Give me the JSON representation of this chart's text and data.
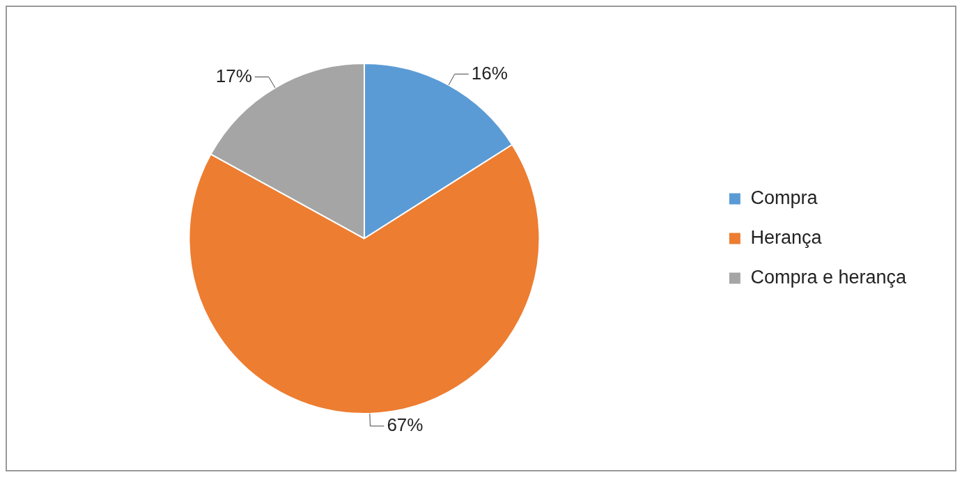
{
  "chart_data": {
    "type": "pie",
    "categories": [
      "Compra",
      "Herança",
      "Compra e herança"
    ],
    "values": [
      16,
      67,
      17
    ],
    "colors": [
      "#5b9bd5",
      "#ed7d31",
      "#a5a5a5"
    ],
    "value_labels": [
      "16%",
      "67%",
      "17%"
    ],
    "legend": "right"
  }
}
